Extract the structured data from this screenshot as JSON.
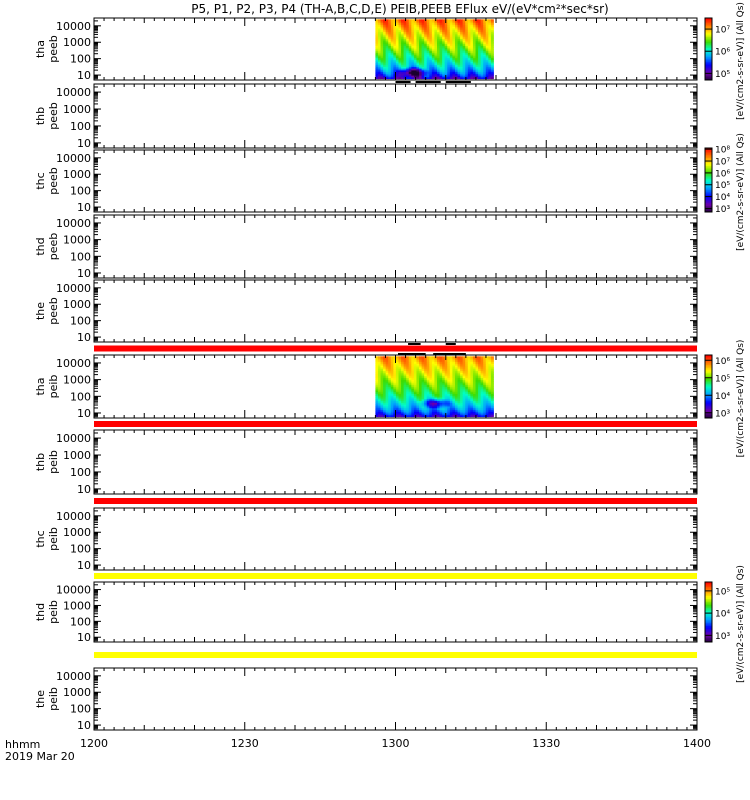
{
  "title": "P5, P1, P2, P3, P4 (TH-A,B,C,D,E) PEIB,PEEB EFlux eV/(eV*cm²*sec*sr)",
  "time_axis": {
    "label_line1": "hhmm",
    "label_line2": "2019 Mar 20",
    "range_minutes": [
      0,
      120
    ],
    "ticks": [
      {
        "t": 0,
        "label": "1200"
      },
      {
        "t": 30,
        "label": "1230"
      },
      {
        "t": 60,
        "label": "1300"
      },
      {
        "t": 90,
        "label": "1330"
      },
      {
        "t": 120,
        "label": "1400"
      }
    ]
  },
  "energy_axis": {
    "scale": "log",
    "range_eV": [
      5,
      30000
    ],
    "ticks": [
      {
        "v": 10,
        "label": "10"
      },
      {
        "v": 100,
        "label": "100"
      },
      {
        "v": 1000,
        "label": "1000"
      },
      {
        "v": 10000,
        "label": "10000"
      }
    ]
  },
  "chart_data": {
    "type": "heatmap",
    "panels": [
      {
        "id": "tha-peeb",
        "ylabel1": "tha",
        "ylabel2": "peeb",
        "data": {
          "t_start": 56,
          "t_end": 79.5,
          "vmin_log": 4.7,
          "vmax_log": 7.5,
          "e_top": 25000,
          "e_bottom": 6,
          "peak_log": 7.2,
          "low_log": 5.0,
          "dip": {
            "t": 63.5,
            "e": 15
          }
        }
      },
      {
        "id": "thb-peeb",
        "ylabel1": "thb",
        "ylabel2": "peeb"
      },
      {
        "id": "thc-peeb",
        "ylabel1": "thc",
        "ylabel2": "peeb"
      },
      {
        "id": "thd-peeb",
        "ylabel1": "thd",
        "ylabel2": "peeb"
      },
      {
        "id": "the-peeb",
        "ylabel1": "the",
        "ylabel2": "peeb"
      },
      {
        "id": "tha-peib",
        "ylabel1": "tha",
        "ylabel2": "peib",
        "data": {
          "t_start": 56,
          "t_end": 79.5,
          "vmin_log": 2.7,
          "vmax_log": 6.3,
          "e_top": 25000,
          "e_bottom": 6,
          "peak_log": 5.8,
          "low_log": 3.2,
          "dip": {
            "t": 68,
            "e": 40
          }
        }
      },
      {
        "id": "thb-peib",
        "ylabel1": "thb",
        "ylabel2": "peib"
      },
      {
        "id": "thc-peib",
        "ylabel1": "thc",
        "ylabel2": "peib"
      },
      {
        "id": "thd-peib",
        "ylabel1": "thd",
        "ylabel2": "peib"
      },
      {
        "id": "the-peib",
        "ylabel1": "the",
        "ylabel2": "peib"
      }
    ],
    "status_bars": [
      {
        "after_panel": 4,
        "color": "#ff0000"
      },
      {
        "after_panel": 5,
        "color": "#ff0000"
      },
      {
        "after_panel": 6,
        "color": "#ff0000"
      },
      {
        "after_panel": 7,
        "color": "#ffff00"
      },
      {
        "after_panel": 8,
        "color": "#ffff00"
      }
    ],
    "mode_segments": [
      {
        "panel": 0,
        "position": "bottom",
        "segments": [
          [
            60,
            63
          ],
          [
            64,
            69
          ],
          [
            70,
            75
          ]
        ]
      },
      {
        "panel": 4,
        "position": "bottom",
        "segments": [
          [
            62.5,
            65
          ],
          [
            70,
            72
          ]
        ]
      },
      {
        "panel": 5,
        "position": "top",
        "segments": [
          [
            60.5,
            66
          ],
          [
            67.5,
            74
          ]
        ]
      }
    ],
    "colorbars": [
      {
        "id": "cb-peeb-a",
        "min_log": 4.7,
        "max_log": 7.5,
        "ticks": [
          {
            "v": 5,
            "label": "10⁵"
          },
          {
            "v": 6,
            "label": "10⁶"
          },
          {
            "v": 7,
            "label": "10⁷"
          }
        ],
        "label": "[eV/(cm2-s-sr-eV)] (All Qs)"
      },
      {
        "id": "cb-peeb-c",
        "min_log": 2.7,
        "max_log": 8.1,
        "ticks": [
          {
            "v": 3,
            "label": "10³"
          },
          {
            "v": 4,
            "label": "10⁴"
          },
          {
            "v": 5,
            "label": "10⁵"
          },
          {
            "v": 6,
            "label": "10⁶"
          },
          {
            "v": 7,
            "label": "10⁷"
          },
          {
            "v": 8,
            "label": "10⁸"
          }
        ],
        "label": "[eV/(cm2-s-sr-eV)] (All Qs)"
      },
      {
        "id": "cb-peib-a",
        "min_log": 2.7,
        "max_log": 6.3,
        "ticks": [
          {
            "v": 3,
            "label": "10³"
          },
          {
            "v": 4,
            "label": "10⁴"
          },
          {
            "v": 5,
            "label": "10⁵"
          },
          {
            "v": 6,
            "label": "10⁶"
          }
        ],
        "label": "[eV/(cm2-s-sr-eV)] (All Qs)"
      },
      {
        "id": "cb-peib-c",
        "min_log": 2.7,
        "max_log": 5.4,
        "ticks": [
          {
            "v": 3,
            "label": "10³"
          },
          {
            "v": 4,
            "label": "10⁴"
          },
          {
            "v": 5,
            "label": "10⁵"
          }
        ],
        "label": "[eV/(cm2-s-sr-eV)] (All Qs)"
      }
    ]
  }
}
